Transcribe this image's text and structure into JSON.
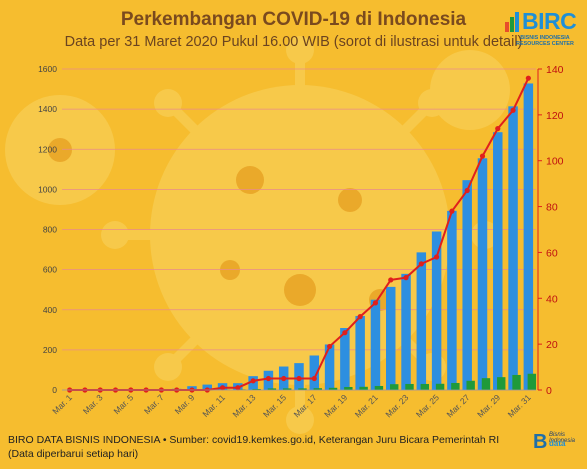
{
  "header": {
    "title": "Perkembangan COVID-19 di Indonesia",
    "subtitle": "Data per 31 Maret 2020 Pukul 16.00 WIB (sorot di ilustrasi untuk detail)"
  },
  "logo": {
    "name": "BIRC",
    "tagline_1": "BISNIS INDONESIA",
    "tagline_2": "RESOURCES CENTER"
  },
  "footer": {
    "source": "BIRO DATA BISNIS INDONESIA • Sumber: covid19.kemkes.go.id, Keterangan Juru Bicara Pemerintah RI (Data diperbarui setiap hari)",
    "logo_top": "Bisnis Indonesia",
    "logo_bottom": "data"
  },
  "colors": {
    "background": "#f6bd2f",
    "confirmed_bar": "#2d8fe0",
    "recovered_bar": "#1f9a3a",
    "deaths_line": "#e0201c",
    "gridline": "#e98b8b"
  },
  "chart_data": {
    "type": "bar",
    "categories": [
      "Mar. 1",
      "Mar. 2",
      "Mar. 3",
      "Mar. 4",
      "Mar. 5",
      "Mar. 6",
      "Mar. 7",
      "Mar. 8",
      "Mar. 9",
      "Mar. 10",
      "Mar. 11",
      "Mar. 12",
      "Mar. 13",
      "Mar. 14",
      "Mar. 15",
      "Mar. 16",
      "Mar. 17",
      "Mar. 18",
      "Mar. 19",
      "Mar. 20",
      "Mar. 21",
      "Mar. 22",
      "Mar. 23",
      "Mar. 24",
      "Mar. 25",
      "Mar. 26",
      "Mar. 27",
      "Mar. 28",
      "Mar. 29",
      "Mar. 30",
      "Mar. 31"
    ],
    "x_tick_labels": [
      "Mar. 1",
      "Mar. 3",
      "Mar. 5",
      "Mar. 7",
      "Mar. 9",
      "Mar. 11",
      "Mar. 13",
      "Mar. 15",
      "Mar. 17",
      "Mar. 19",
      "Mar. 21",
      "Mar. 23",
      "Mar. 25",
      "Mar. 27",
      "Mar. 29",
      "Mar. 31"
    ],
    "series": [
      {
        "axis": "left",
        "kind": "bar",
        "values": [
          0,
          2,
          2,
          2,
          4,
          4,
          4,
          6,
          19,
          27,
          34,
          34,
          69,
          96,
          117,
          134,
          172,
          227,
          309,
          369,
          450,
          514,
          579,
          686,
          790,
          893,
          1046,
          1155,
          1285,
          1414,
          1528
        ]
      },
      {
        "axis": "left",
        "kind": "bar",
        "values": [
          0,
          0,
          0,
          0,
          0,
          0,
          0,
          0,
          0,
          2,
          2,
          3,
          5,
          8,
          8,
          8,
          9,
          11,
          15,
          16,
          20,
          29,
          30,
          30,
          31,
          35,
          46,
          59,
          64,
          75,
          81
        ]
      },
      {
        "axis": "right",
        "kind": "line",
        "values": [
          0,
          0,
          0,
          0,
          0,
          0,
          0,
          0,
          0,
          0,
          1,
          1,
          4,
          5,
          5,
          5,
          5,
          19,
          25,
          32,
          38,
          48,
          49,
          55,
          58,
          78,
          87,
          102,
          114,
          122,
          136
        ]
      }
    ],
    "y_left": {
      "min": 0,
      "max": 1600,
      "ticks": [
        0,
        200,
        400,
        600,
        800,
        1000,
        1200,
        1400,
        1600
      ]
    },
    "y_right": {
      "min": 0,
      "max": 140,
      "ticks": [
        0,
        20,
        40,
        60,
        80,
        100,
        120,
        140
      ]
    },
    "grid": true
  }
}
